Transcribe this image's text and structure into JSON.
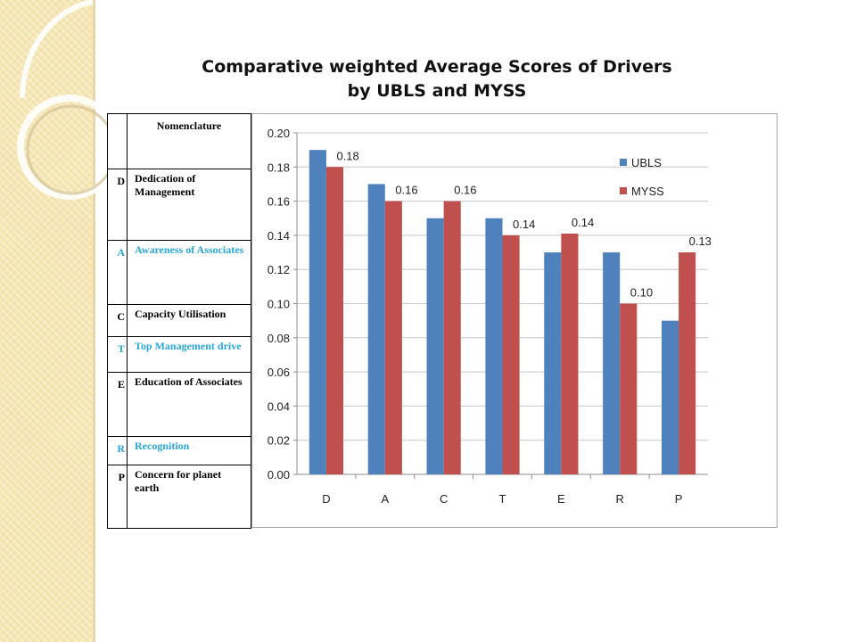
{
  "title": {
    "line1": "Comparative weighted Average Scores of Drivers",
    "line2": "by UBLS and MYSS"
  },
  "nomenclature": {
    "header": "Nomenclature",
    "rows": [
      {
        "code": "D",
        "label": "Dedication of Management",
        "color": "#000000"
      },
      {
        "code": "A",
        "label": "Awareness of Associates",
        "color": "#2aa7d6"
      },
      {
        "code": "C",
        "label": "Capacity Utilisation",
        "color": "#000000"
      },
      {
        "code": "T",
        "label": "Top Management drive",
        "color": "#2aa7d6"
      },
      {
        "code": "E",
        "label": "Education of Associates",
        "color": "#000000"
      },
      {
        "code": "R",
        "label": "Recognition",
        "color": "#2aa7d6"
      },
      {
        "code": "P",
        "label": "Concern for planet earth",
        "color": "#000000"
      }
    ]
  },
  "chart_data": {
    "type": "bar",
    "categories": [
      "D",
      "A",
      "C",
      "T",
      "E",
      "R",
      "P"
    ],
    "series": [
      {
        "name": "UBLS",
        "color": "#4f81bd",
        "values": [
          0.19,
          0.17,
          0.15,
          0.15,
          0.13,
          0.13,
          0.09
        ]
      },
      {
        "name": "MYSS",
        "color": "#c0504d",
        "values": [
          0.18,
          0.16,
          0.16,
          0.14,
          0.141,
          0.1,
          0.13
        ]
      }
    ],
    "data_labels": {
      "series": "MYSS",
      "labels": [
        "0.18",
        "0.16",
        "0.16",
        "0.14",
        "0.14",
        "0.10",
        "0.13"
      ]
    },
    "ylim": [
      0,
      0.2
    ],
    "yticks": [
      "0.00",
      "0.02",
      "0.04",
      "0.06",
      "0.08",
      "0.10",
      "0.12",
      "0.14",
      "0.16",
      "0.18",
      "0.20"
    ],
    "grid": true,
    "legend_position": "right"
  }
}
